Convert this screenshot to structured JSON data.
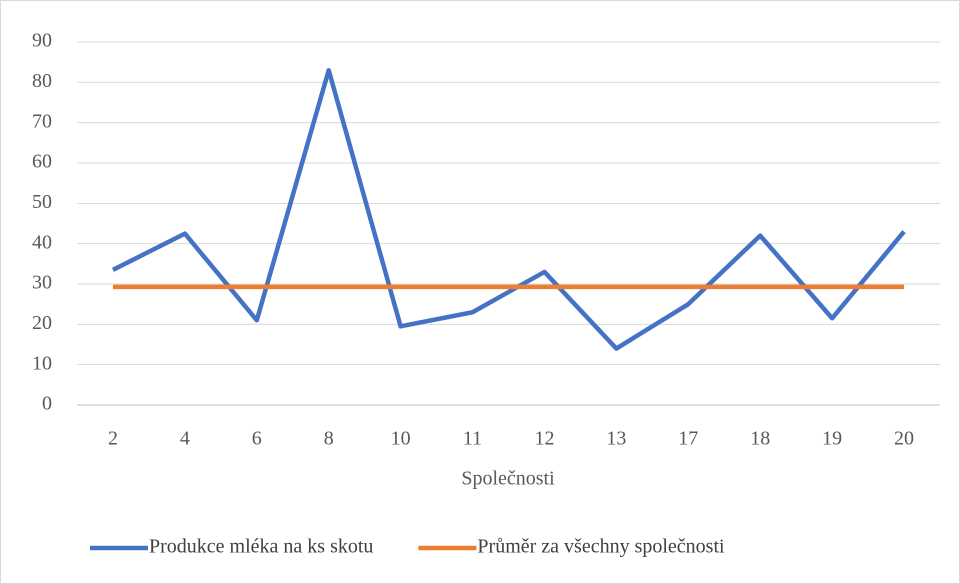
{
  "chart_data": {
    "type": "line",
    "x_label": "Společnosti",
    "categories": [
      "2",
      "4",
      "6",
      "8",
      "10",
      "11",
      "12",
      "13",
      "17",
      "18",
      "19",
      "20"
    ],
    "series": [
      {
        "name": "Produkce mléka na ks skotu",
        "color": "#4472c4",
        "values": [
          33.5,
          42.5,
          21,
          83,
          19.5,
          23,
          33,
          14,
          25,
          42,
          21.5,
          43
        ]
      },
      {
        "name": "Průměr za všechny společnosti",
        "color": "#ed7d31",
        "values": [
          29.3,
          29.3,
          29.3,
          29.3,
          29.3,
          29.3,
          29.3,
          29.3,
          29.3,
          29.3,
          29.3,
          29.3
        ]
      }
    ],
    "ylim": [
      0,
      90
    ],
    "yticks": [
      0,
      10,
      20,
      30,
      40,
      50,
      60,
      70,
      80,
      90
    ],
    "grid": true,
    "legend": "bottom"
  }
}
